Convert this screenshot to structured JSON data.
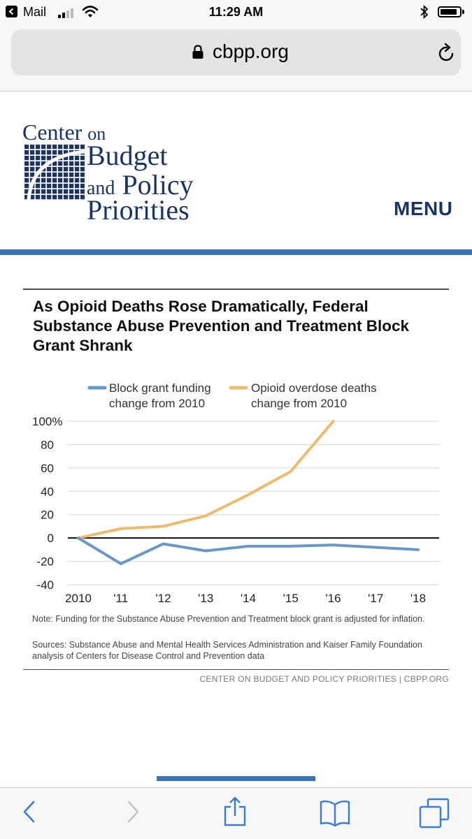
{
  "status_bar": {
    "back_app": "Mail",
    "time": "11:29 AM",
    "battery_level": 0.78
  },
  "browser": {
    "url": "cbpp.org"
  },
  "site": {
    "logo": {
      "line1": "Center",
      "line1_small": "on",
      "line2": "Budget",
      "line3_small": "and",
      "line3": "Policy",
      "line4": "Priorities"
    },
    "menu_label": "MENU"
  },
  "figure": {
    "title": "As Opioid Deaths Rose Dramatically, Federal Substance Abuse Prevention and Treatment Block Grant Shrank",
    "note": "Note: Funding for the Substance Abuse Prevention and Treatment block grant is adjusted for inflation.",
    "sources": "Sources: Substance Abuse and Mental Health Services Administration and Kaiser Family Foundation analysis of Centers for Disease Control and Prevention data",
    "credit": "CENTER ON BUDGET AND POLICY PRIORITIES | CBPP.ORG"
  },
  "chart_data": {
    "type": "line",
    "title": "As Opioid Deaths Rose Dramatically, Federal Substance Abuse Prevention and Treatment Block Grant Shrank",
    "xlabel": "",
    "ylabel": "",
    "categories": [
      "2010",
      "'11",
      "'12",
      "'13",
      "'14",
      "'15",
      "'16",
      "'17",
      "'18"
    ],
    "y_ticks": [
      100,
      80,
      60,
      40,
      20,
      0,
      -20,
      -40
    ],
    "y_tick_labels": [
      "100%",
      "80",
      "60",
      "40",
      "20",
      "0",
      "-20",
      "-40"
    ],
    "ylim": [
      -40,
      100
    ],
    "grid": true,
    "legend_position": "top",
    "series": [
      {
        "name": "Block grant funding change from 2010",
        "legend_lines": [
          "Block grant funding",
          "change from 2010"
        ],
        "color": "#6a98c6",
        "values": [
          0,
          -22,
          -5,
          -11,
          -7,
          -7,
          -6,
          -8,
          -10
        ]
      },
      {
        "name": "Opioid overdose deaths change from 2010",
        "legend_lines": [
          "Opioid overdose deaths",
          "change from 2010"
        ],
        "color": "#edba72",
        "values": [
          0,
          8,
          10,
          19,
          37,
          57,
          100,
          null,
          null
        ]
      }
    ]
  },
  "toolbar": {
    "buttons": [
      "back",
      "forward",
      "share",
      "bookmarks",
      "tabs"
    ]
  }
}
